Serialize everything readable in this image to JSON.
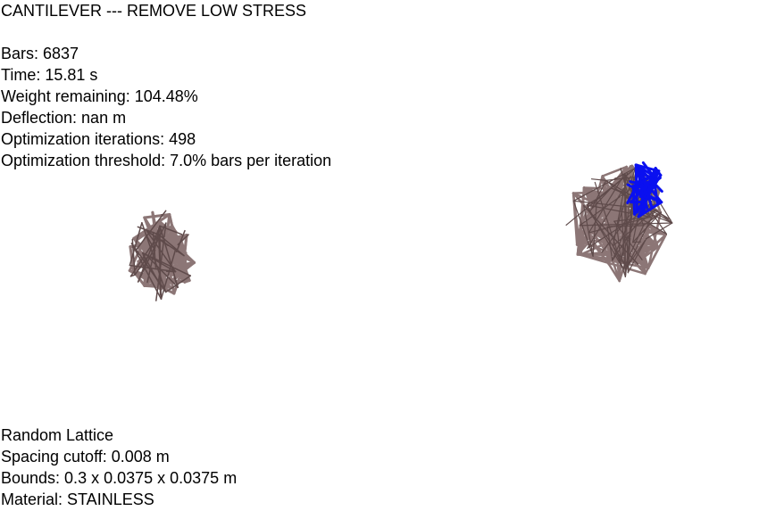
{
  "header": {
    "title": "CANTILEVER --- REMOVE LOW STRESS"
  },
  "stats": {
    "bars": "Bars: 6837",
    "time": "Time: 15.81 s",
    "weight": "Weight remaining: 104.48%",
    "deflection": "Deflection: nan m",
    "iterations": "Optimization iterations: 498",
    "threshold": "Optimization threshold: 7.0% bars per iteration"
  },
  "footer": {
    "lattice_type": "Random Lattice",
    "spacing": "Spacing cutoff: 0.008 m",
    "bounds": "Bounds: 0.3 x 0.0375 x 0.0375 m",
    "material": "Material: STAINLESS"
  },
  "colors": {
    "bar": "#8c7676",
    "bar_dark": "#5f4b4b",
    "high_stress": "#0a10f0",
    "background": "#ffffff"
  }
}
